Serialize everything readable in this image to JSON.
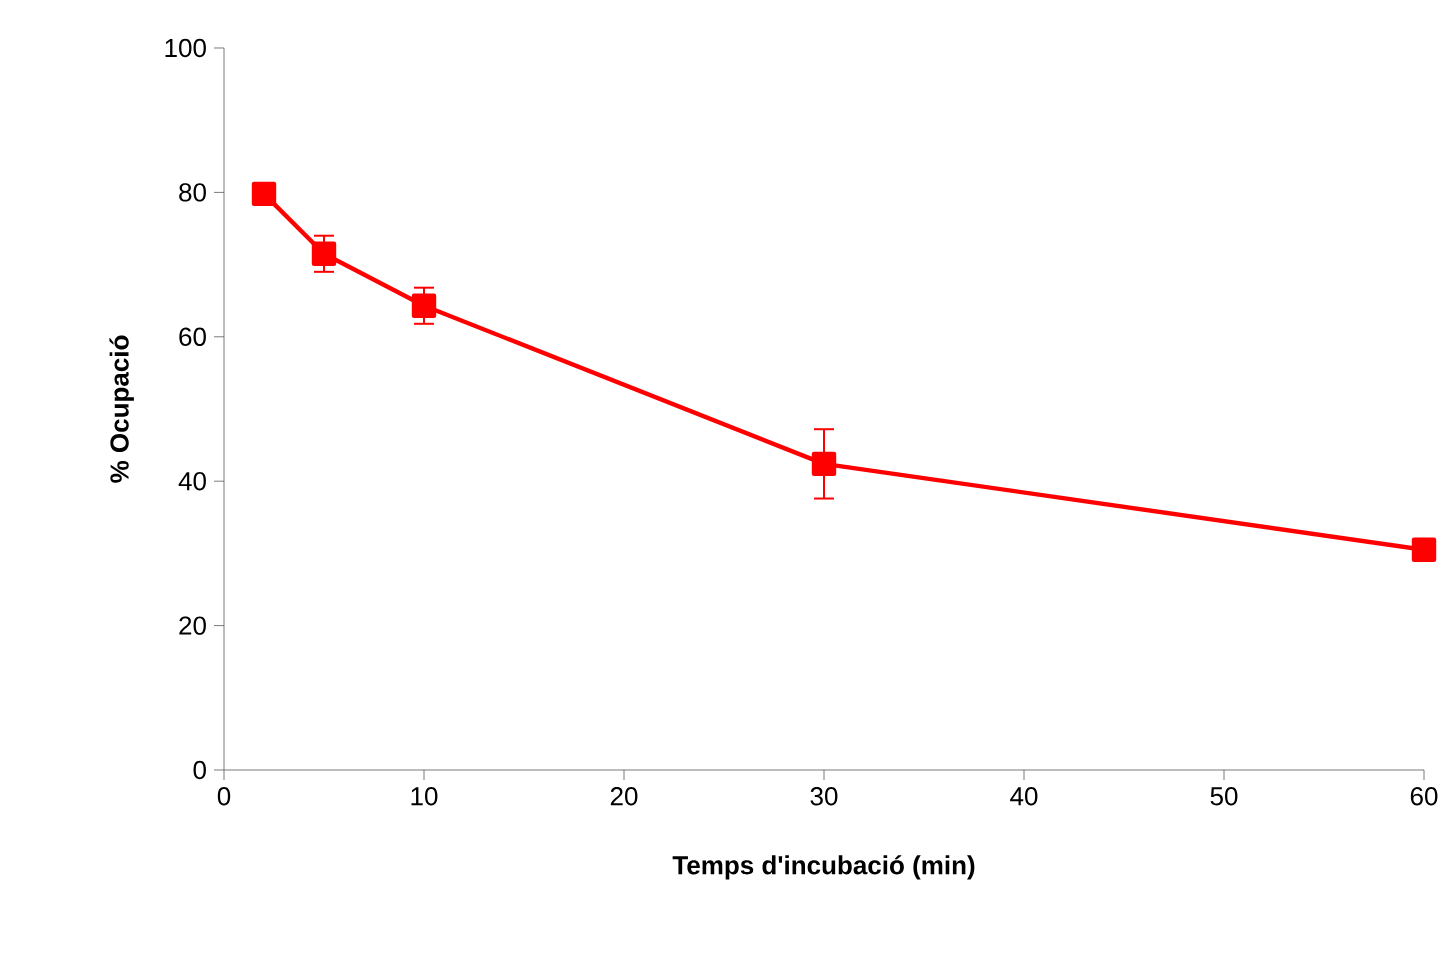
{
  "chart_data": {
    "type": "line",
    "xlabel": "Temps d'incubació (min)",
    "ylabel": "% Ocupació",
    "x": [
      2,
      5,
      10,
      30,
      60
    ],
    "series": [
      {
        "color": "#ff0000",
        "values": [
          79.8,
          71.5,
          64.3,
          42.4,
          30.5
        ],
        "errors": [
          1.5,
          2.5,
          2.5,
          4.8,
          1.5
        ]
      }
    ],
    "xlim": [
      0,
      60
    ],
    "xticks": [
      0,
      10,
      20,
      30,
      40,
      50,
      60
    ],
    "ylim": [
      0,
      100
    ],
    "yticks": [
      0,
      20,
      40,
      60,
      80,
      100
    ],
    "marker": "square",
    "line_style": "solid"
  }
}
